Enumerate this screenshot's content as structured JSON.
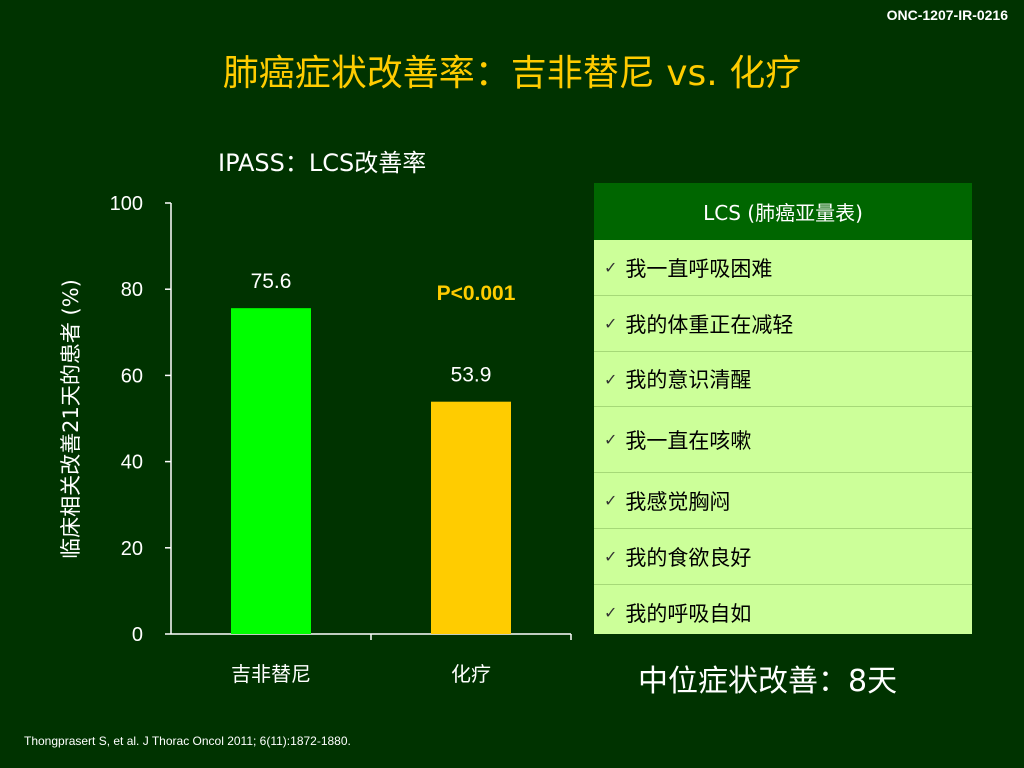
{
  "doc_id": "ONC-1207-IR-0216",
  "title": "肺癌症状改善率：吉非替尼 vs. 化疗",
  "chart_data": {
    "type": "bar",
    "title": "IPASS：LCS改善率",
    "ylabel": "临床相关改善21天的患者 (%)",
    "xlabel": "",
    "ylim": [
      0,
      100
    ],
    "yticks": [
      0,
      20,
      40,
      60,
      80,
      100
    ],
    "categories": [
      "吉非替尼",
      "化疗"
    ],
    "values": [
      75.6,
      53.9
    ],
    "data_labels": [
      "75.6",
      "53.9"
    ],
    "bar_colors": [
      "#00ff00",
      "#ffcc00"
    ],
    "annotation": "P<0.001",
    "annotation_color": "#ffcc00",
    "grid": false,
    "legend": "none"
  },
  "lcs_table": {
    "header": "LCS (肺癌亚量表)",
    "check_icon": "✓",
    "items": [
      "我一直呼吸困难",
      "我的体重正在减轻",
      "我的意识清醒",
      "我一直在咳嗽",
      "我感觉胸闷",
      "我的食欲良好",
      "我的呼吸自如"
    ]
  },
  "median_text": "中位症状改善：8天",
  "reference": "Thongprasert S, et al. J Thorac Oncol 2011; 6(11):1872-1880.",
  "colors": {
    "background": "#003300",
    "title": "#ffcc00",
    "table_header_bg": "#006600",
    "table_body_bg": "#ccff99"
  }
}
